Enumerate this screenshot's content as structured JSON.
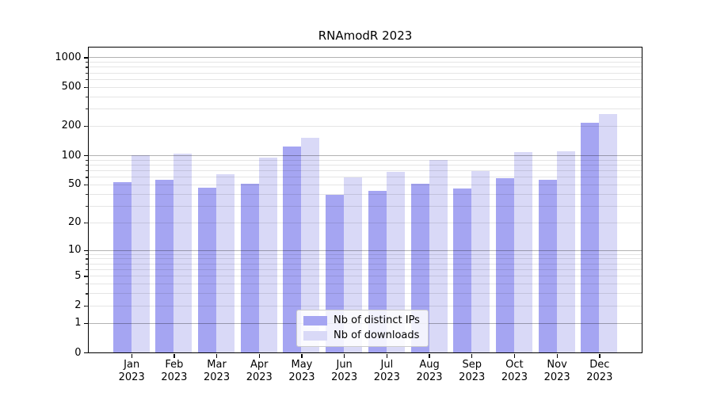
{
  "chart_data": {
    "type": "bar",
    "title": "RNAmodR 2023",
    "categories": [
      "Jan",
      "Feb",
      "Mar",
      "Apr",
      "May",
      "Jun",
      "Jul",
      "Aug",
      "Sep",
      "Oct",
      "Nov",
      "Dec"
    ],
    "year_label": "2023",
    "series": [
      {
        "name": "Nb of distinct IPs",
        "color": "#a5a5f2",
        "values": [
          53,
          56,
          46,
          51,
          124,
          39,
          43,
          51,
          45,
          58,
          56,
          217
        ]
      },
      {
        "name": "Nb of downloads",
        "color": "#d9d9f7",
        "values": [
          100,
          104,
          64,
          94,
          150,
          59,
          68,
          89,
          69,
          108,
          110,
          265
        ]
      }
    ],
    "yscale": "log1p",
    "ylim": [
      0,
      1250
    ],
    "yticks": [
      0,
      1,
      2,
      5,
      10,
      20,
      50,
      100,
      200,
      500,
      1000
    ],
    "grid": {
      "major": [
        1,
        10,
        100,
        1000
      ],
      "minor": [
        2,
        3,
        4,
        5,
        6,
        7,
        8,
        9,
        20,
        30,
        40,
        50,
        60,
        70,
        80,
        90,
        200,
        300,
        400,
        500,
        600,
        700,
        800,
        900
      ]
    },
    "legend_position": "lower center",
    "grid_on": true,
    "xlabel": "",
    "ylabel": ""
  }
}
